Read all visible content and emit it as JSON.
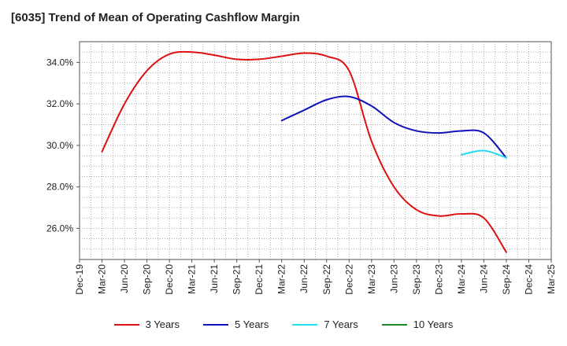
{
  "chart_data": {
    "type": "line",
    "title": "[6035]  Trend of Mean of Operating Cashflow Margin",
    "xlabel": "",
    "ylabel": "",
    "x_ticks": [
      "Dec-19",
      "Mar-20",
      "Jun-20",
      "Sep-20",
      "Dec-20",
      "Mar-21",
      "Jun-21",
      "Sep-21",
      "Dec-21",
      "Mar-22",
      "Jun-22",
      "Sep-22",
      "Dec-22",
      "Mar-23",
      "Jun-23",
      "Sep-23",
      "Dec-23",
      "Mar-24",
      "Jun-24",
      "Sep-24",
      "Dec-24",
      "Mar-25"
    ],
    "y_ticks": [
      "26.0%",
      "28.0%",
      "30.0%",
      "32.0%",
      "34.0%"
    ],
    "y_tick_values": [
      26,
      28,
      30,
      32,
      34
    ],
    "ylim": [
      24.5,
      35.0
    ],
    "grid": true,
    "legend_position": "bottom",
    "series": [
      {
        "name": "3 Years",
        "color": "#dd1111",
        "points": [
          [
            "Mar-20",
            29.7
          ],
          [
            "Jun-20",
            32.0
          ],
          [
            "Sep-20",
            33.6
          ],
          [
            "Dec-20",
            34.4
          ],
          [
            "Mar-21",
            34.5
          ],
          [
            "Jun-21",
            34.35
          ],
          [
            "Sep-21",
            34.15
          ],
          [
            "Dec-21",
            34.15
          ],
          [
            "Mar-22",
            34.3
          ],
          [
            "Jun-22",
            34.45
          ],
          [
            "Sep-22",
            34.3
          ],
          [
            "Dec-22",
            33.6
          ],
          [
            "Mar-23",
            30.2
          ],
          [
            "Jun-23",
            28.0
          ],
          [
            "Sep-23",
            26.9
          ],
          [
            "Dec-23",
            26.6
          ],
          [
            "Mar-24",
            26.7
          ],
          [
            "Jun-24",
            26.5
          ],
          [
            "Sep-24",
            24.85
          ]
        ]
      },
      {
        "name": "5 Years",
        "color": "#1111bb",
        "points": [
          [
            "Mar-22",
            31.2
          ],
          [
            "Jun-22",
            31.7
          ],
          [
            "Sep-22",
            32.2
          ],
          [
            "Dec-22",
            32.35
          ],
          [
            "Mar-23",
            31.9
          ],
          [
            "Jun-23",
            31.1
          ],
          [
            "Sep-23",
            30.7
          ],
          [
            "Dec-23",
            30.6
          ],
          [
            "Mar-24",
            30.7
          ],
          [
            "Jun-24",
            30.6
          ],
          [
            "Sep-24",
            29.4
          ]
        ]
      },
      {
        "name": "7 Years",
        "color": "#22ddee",
        "points": [
          [
            "Mar-24",
            29.55
          ],
          [
            "Jun-24",
            29.75
          ],
          [
            "Sep-24",
            29.4
          ]
        ]
      },
      {
        "name": "10 Years",
        "color": "#228822",
        "points": []
      }
    ]
  }
}
